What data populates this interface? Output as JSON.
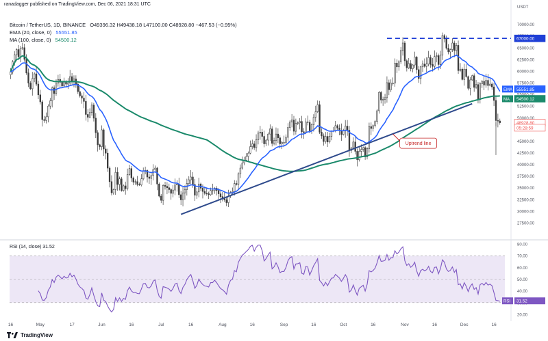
{
  "header": {
    "publisher_line": "ranadagger published on TradingView.com, Dec 06, 2021 18:31 UTC",
    "symbol_line_prefix": "Bitcoin / TetherUS, 1D, BINANCE",
    "ohlc": "O49396.32  H49438.18  L47100.00  C48928.80  −467.53 (−0.95%)",
    "ema_label": "EMA (20, close, 0)",
    "ema_value": "55551.85",
    "ma_label": "MA (100, close, 0)",
    "ma_value": "54500.12"
  },
  "currency": "USDT",
  "annotation": "Uptrend line",
  "footer": {
    "brand": "TradingView"
  },
  "colors": {
    "up": "#26a69a",
    "down": "#ef5350",
    "candle": "#3b3b3b",
    "ema": "#2962ff",
    "ma": "#1b8a6b",
    "trendline": "#2e4a8c",
    "resistance": "#1f3fd6",
    "rsi_line": "#7e57c2",
    "rsi_fill": "#ede7f6",
    "annotation": "#c62828"
  },
  "chart_data": [
    {
      "type": "candlestick",
      "title": "",
      "xlabel": "",
      "ylabel": "",
      "ylim": [
        25000,
        72000
      ],
      "y_ticks": [
        "72500.00",
        "70000.00",
        "67500.00",
        "65000.00",
        "62500.00",
        "60000.00",
        "57500.00",
        "55000.00",
        "52500.00",
        "50000.00",
        "47500.00",
        "45000.00",
        "42500.00",
        "40000.00",
        "37500.00",
        "35000.00",
        "32500.00",
        "30000.00",
        "27500.00"
      ],
      "x_ticks": [
        "16",
        "May",
        "17",
        "Jun",
        "16",
        "Jul",
        "16",
        "Aug",
        "16",
        "Sep",
        "16",
        "Oct",
        "16",
        "Nov",
        "16",
        "Dec",
        "16"
      ],
      "x_tick_days": [
        0,
        15,
        31,
        46,
        61,
        76,
        91,
        107,
        122,
        138,
        153,
        168,
        183,
        199,
        214,
        229,
        244
      ],
      "x_start": "2021-04-16",
      "closes": [
        59800,
        62000,
        63500,
        64600,
        63100,
        64800,
        65000,
        62500,
        59600,
        57400,
        56200,
        58400,
        59400,
        57200,
        54900,
        53400,
        49600,
        49400,
        50200,
        52500,
        53600,
        56400,
        55200,
        57400,
        58200,
        57600,
        56800,
        57800,
        57200,
        57400,
        58800,
        57800,
        58300,
        57200,
        55600,
        54700,
        54200,
        53500,
        50700,
        50100,
        51100,
        52700,
        49900,
        46800,
        44200,
        43800,
        47400,
        43300,
        42400,
        39200,
        36300,
        33900,
        34600,
        38300,
        35700,
        36900,
        34400,
        35400,
        34800,
        37800,
        39100,
        37100,
        36200,
        36300,
        35700,
        35600,
        36900,
        38600,
        38700,
        37300,
        37000,
        37600,
        38900,
        39200,
        35800,
        33200,
        32300,
        35500,
        35300,
        35000,
        34600,
        33800,
        34500,
        35600,
        35800,
        33500,
        32400,
        33900,
        34600,
        35900,
        36700,
        37300,
        35700,
        33400,
        34100,
        35800,
        34900,
        34200,
        33800,
        33700,
        33500,
        34400,
        34400,
        34900,
        34400,
        33700,
        33100,
        32800,
        32400,
        31800,
        33200,
        34000,
        34200,
        35900,
        35700,
        38000,
        39200,
        40300,
        40900,
        41700,
        42400,
        43800,
        44400,
        43600,
        45300,
        46700,
        46900,
        46000,
        44400,
        45200,
        46500,
        47600,
        44500,
        45100,
        46500,
        45700,
        44400,
        44700,
        44700,
        45800,
        47900,
        49100,
        49500,
        47100,
        48800,
        48900,
        49200,
        47000,
        46800,
        49100,
        49000,
        47200,
        48500,
        50100,
        51300,
        52800,
        46900,
        46100,
        44900,
        46000,
        44800,
        46000,
        47100,
        47200,
        48300,
        47800,
        47300,
        46400,
        47200,
        48200,
        47300,
        43000,
        43500,
        44800,
        42800,
        41000,
        42800,
        43200,
        43600,
        41600,
        43400,
        48100,
        47700,
        48300,
        49200,
        51500,
        55400,
        53800,
        53900,
        54300,
        57500,
        56000,
        57400,
        57400,
        61700,
        60900,
        62000,
        64400,
        66000,
        62200,
        60700,
        61600,
        60500,
        61300,
        63000,
        60300,
        58400,
        60900,
        61500,
        61000,
        61500,
        62900,
        61400,
        61000,
        63100,
        63300,
        61400,
        63400,
        67600,
        66900,
        64900,
        64100,
        64600,
        66000,
        64400,
        65500,
        60100,
        60400,
        58200,
        60400,
        58800,
        56300,
        58100,
        59000,
        56500,
        57100,
        53900,
        57300,
        57800,
        57000,
        58000,
        56900,
        57200,
        56600,
        53700,
        49400,
        49300,
        48928.8
      ],
      "ema20": {
        "name": "EMA",
        "last_value": 55551.85
      },
      "ma100": {
        "name": "MA",
        "last_value": 54500.12
      },
      "uptrend_line": {
        "from": {
          "day": 86,
          "value": 29300
        },
        "to": {
          "day": 233,
          "value": 53000
        }
      },
      "resistance": {
        "value": 67000
      },
      "price_labels": [
        {
          "text": "67000.00",
          "value": 67000,
          "style": "resistance"
        },
        {
          "text": "55551.85",
          "value": 55551.85,
          "style": "ema",
          "tag": "EMA"
        },
        {
          "text": "54500.12",
          "value": 54500.12,
          "style": "ma",
          "tag": "MA"
        },
        {
          "text": "48928.80",
          "value": 48928.8,
          "style": "last"
        },
        {
          "text": "05:28:59",
          "value": 47850,
          "style": "countdown"
        }
      ]
    },
    {
      "type": "line",
      "title": "RSI (14, close)",
      "series": [
        {
          "name": "RSI",
          "last_value": 31.52
        }
      ],
      "ylim": [
        20,
        80
      ],
      "y_ticks": [
        "80.00",
        "70.00",
        "60.00",
        "50.00",
        "40.00",
        "30.00",
        "20.00"
      ],
      "bands": [
        30,
        50,
        70
      ],
      "last_label": "31.52"
    }
  ]
}
